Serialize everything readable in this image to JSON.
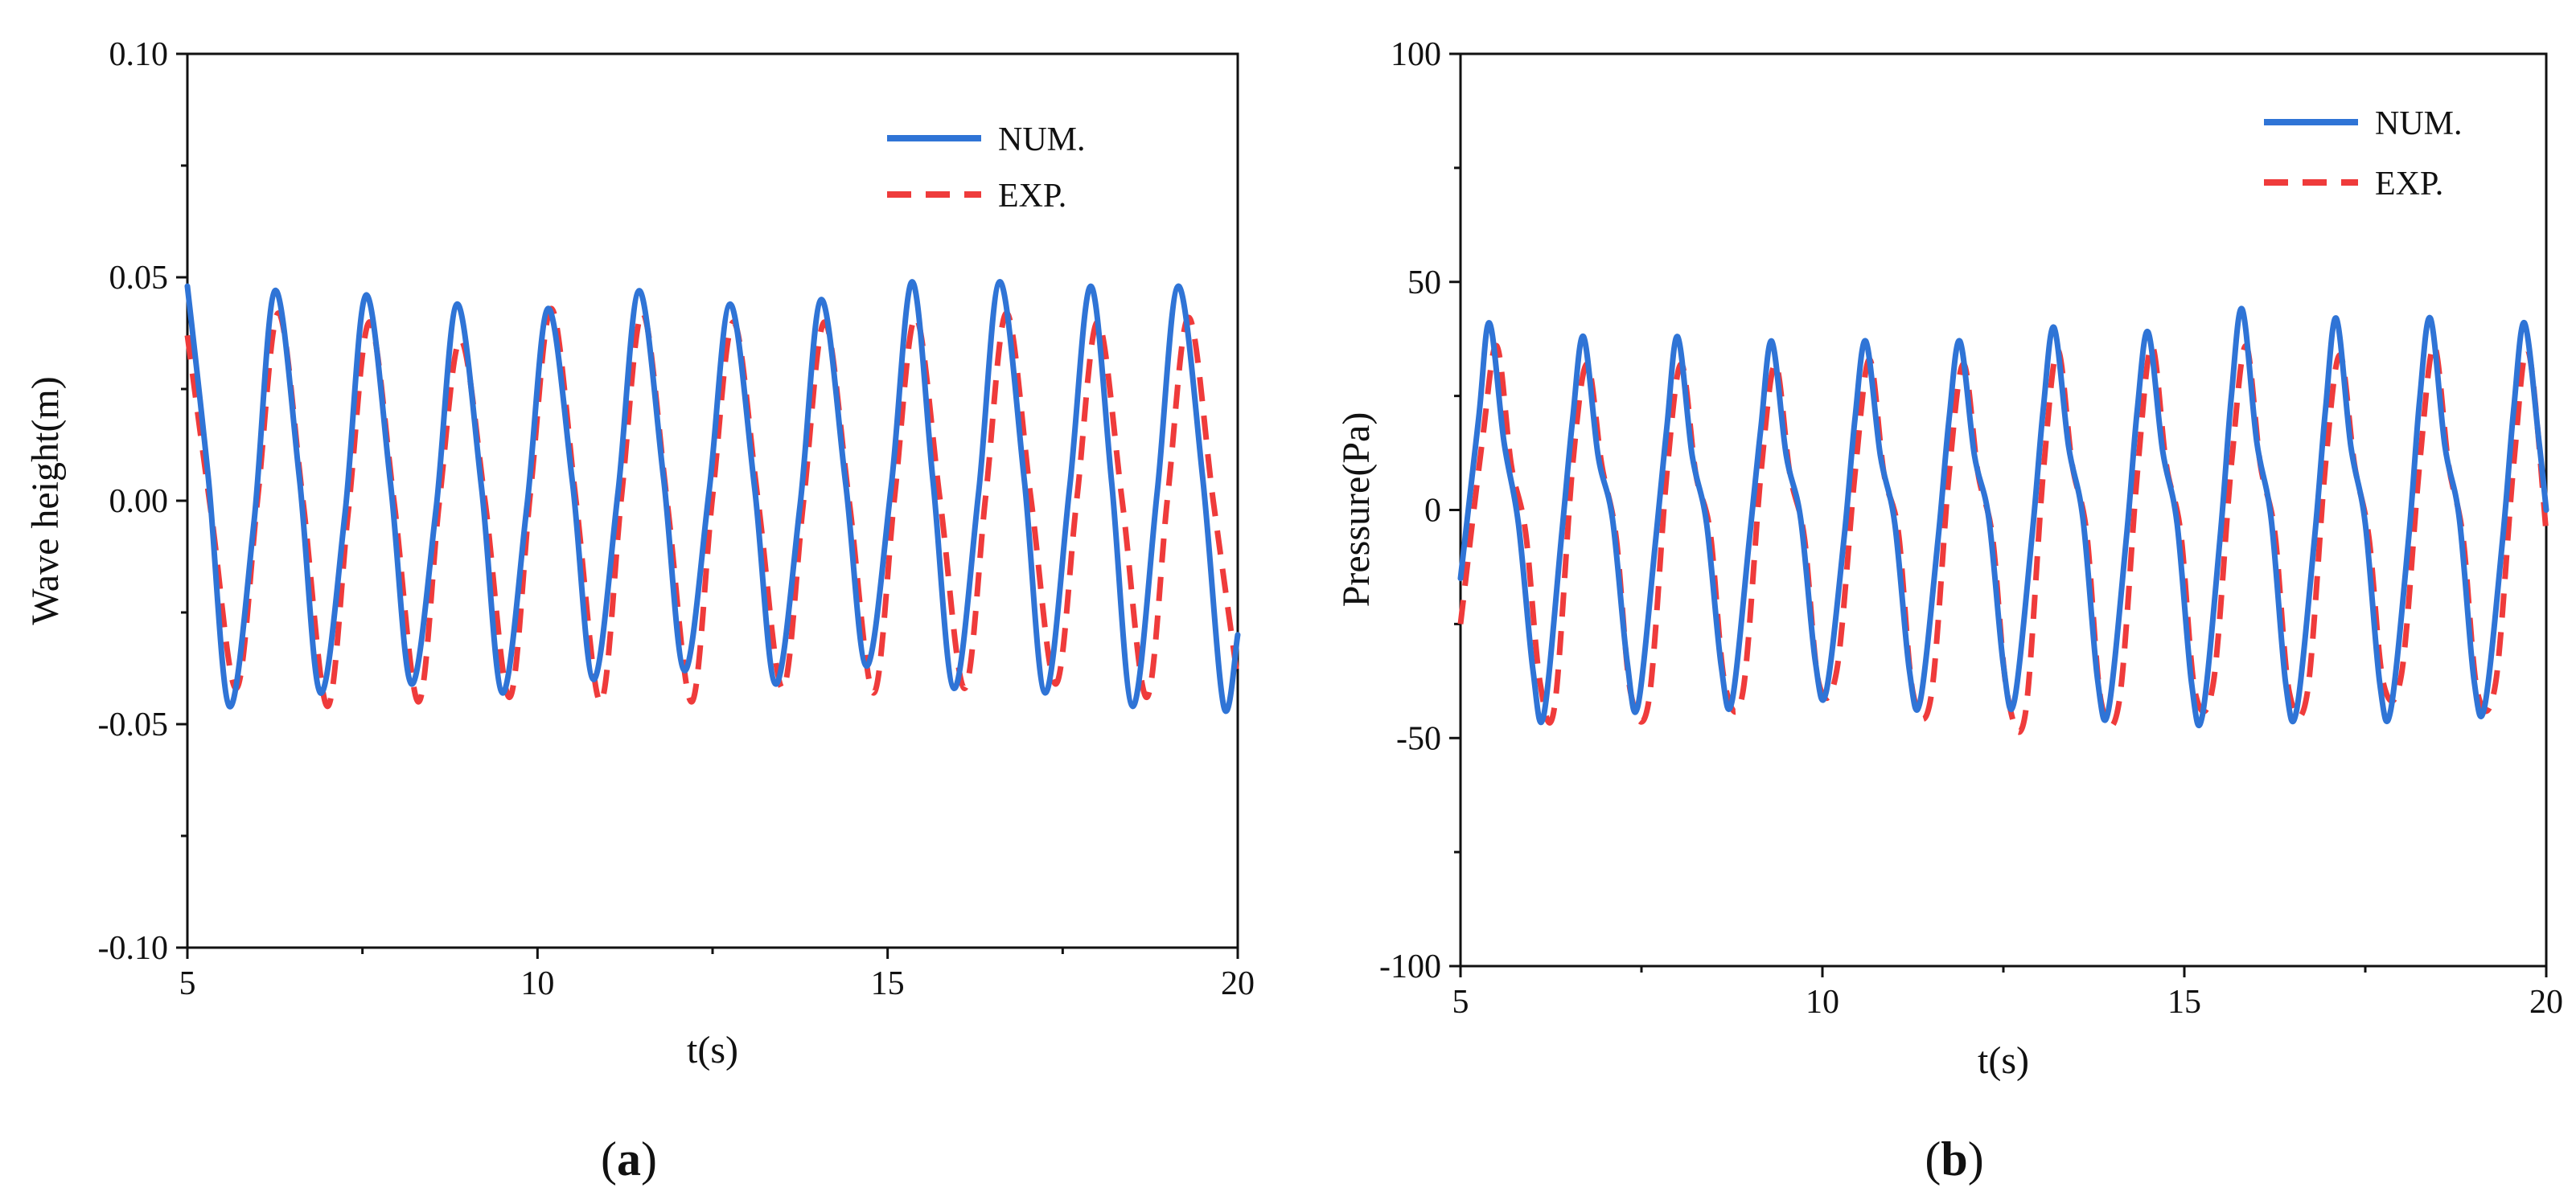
{
  "chart_data": [
    {
      "type": "line",
      "panel_label": "a",
      "xlabel": "t(s)",
      "ylabel": "Wave height(m)",
      "xlim": [
        5,
        20
      ],
      "ylim": [
        -0.1,
        0.1
      ],
      "xticks": [
        5,
        10,
        15,
        20
      ],
      "xtick_labels": [
        "5",
        "10",
        "15",
        "20"
      ],
      "yticks": [
        -0.1,
        -0.05,
        0.0,
        0.05,
        0.1
      ],
      "ytick_labels": [
        "-0.10",
        "-0.05",
        "0.00",
        "0.05",
        "0.10"
      ],
      "grid": false,
      "legend_position": "top-right",
      "series": [
        {
          "name": "NUM.",
          "color": "#2f74d6",
          "style": "solid",
          "x": [
            5.0,
            5.3,
            5.6,
            5.95,
            6.25,
            6.6,
            6.9,
            7.25,
            7.55,
            7.9,
            8.2,
            8.55,
            8.85,
            9.2,
            9.5,
            9.85,
            10.15,
            10.5,
            10.8,
            11.15,
            11.45,
            11.8,
            12.1,
            12.45,
            12.75,
            13.1,
            13.4,
            13.75,
            14.05,
            14.4,
            14.7,
            15.05,
            15.35,
            15.65,
            15.95,
            16.3,
            16.6,
            16.95,
            17.25,
            17.6,
            17.9,
            18.2,
            18.5,
            18.85,
            19.15,
            19.5,
            19.8,
            20.0
          ],
          "y": [
            0.048,
            0.005,
            -0.046,
            -0.005,
            0.047,
            0.005,
            -0.043,
            -0.003,
            0.046,
            0.004,
            -0.041,
            -0.002,
            0.044,
            0.003,
            -0.043,
            -0.001,
            0.043,
            0.004,
            -0.04,
            0.002,
            0.047,
            0.005,
            -0.038,
            0.002,
            0.044,
            0.003,
            -0.041,
            -0.001,
            0.045,
            0.004,
            -0.037,
            0.003,
            0.049,
            0.004,
            -0.042,
            0.002,
            0.049,
            0.005,
            -0.043,
            0.003,
            0.048,
            0.004,
            -0.046,
            0.002,
            0.048,
            0.005,
            -0.046,
            -0.03
          ]
        },
        {
          "name": "EXP.",
          "color": "#ef3b3b",
          "style": "dashed",
          "x": [
            5.0,
            5.35,
            5.7,
            6.0,
            6.3,
            6.65,
            7.0,
            7.3,
            7.6,
            7.95,
            8.3,
            8.6,
            8.9,
            9.25,
            9.6,
            9.9,
            10.2,
            10.55,
            10.9,
            11.2,
            11.5,
            11.85,
            12.2,
            12.5,
            12.8,
            13.15,
            13.5,
            13.8,
            14.1,
            14.45,
            14.8,
            15.1,
            15.4,
            15.75,
            16.1,
            16.4,
            16.7,
            17.05,
            17.4,
            17.7,
            18.0,
            18.35,
            18.7,
            19.0,
            19.3,
            19.65,
            20.0
          ],
          "y": [
            0.037,
            -0.004,
            -0.042,
            0.0,
            0.042,
            0.0,
            -0.046,
            -0.002,
            0.04,
            0.0,
            -0.045,
            0.0,
            0.036,
            0.0,
            -0.044,
            0.002,
            0.043,
            0.0,
            -0.045,
            0.001,
            0.042,
            0.0,
            -0.045,
            0.001,
            0.04,
            0.0,
            -0.042,
            0.0,
            0.04,
            0.0,
            -0.043,
            0.001,
            0.041,
            0.0,
            -0.042,
            0.001,
            0.042,
            0.0,
            -0.041,
            0.0,
            0.04,
            0.0,
            -0.044,
            0.001,
            0.041,
            0.0,
            -0.04
          ]
        }
      ]
    },
    {
      "type": "line",
      "panel_label": "b",
      "xlabel": "t(s)",
      "ylabel": "Pressure(Pa)",
      "xlim": [
        5,
        20
      ],
      "ylim": [
        -100,
        100
      ],
      "xticks": [
        5,
        10,
        15,
        20
      ],
      "xtick_labels": [
        "5",
        "10",
        "15",
        "20"
      ],
      "yticks": [
        -100,
        -50,
        0,
        50,
        100
      ],
      "ytick_labels": [
        "-100",
        "-50",
        "0",
        "50",
        "100"
      ],
      "grid": false,
      "legend_position": "top-right",
      "series": [
        {
          "name": "NUM.",
          "color": "#2f74d6",
          "style": "solid",
          "x": [
            5.0,
            5.25,
            5.4,
            5.6,
            5.8,
            6.0,
            6.15,
            6.4,
            6.55,
            6.7,
            6.9,
            7.1,
            7.3,
            7.45,
            7.7,
            7.85,
            8.0,
            8.2,
            8.4,
            8.6,
            8.75,
            9.0,
            9.15,
            9.3,
            9.5,
            9.7,
            9.9,
            10.05,
            10.3,
            10.45,
            10.6,
            10.8,
            11.0,
            11.2,
            11.35,
            11.6,
            11.75,
            11.9,
            12.1,
            12.3,
            12.5,
            12.65,
            12.9,
            13.05,
            13.2,
            13.4,
            13.6,
            13.8,
            13.95,
            14.2,
            14.35,
            14.5,
            14.7,
            14.9,
            15.1,
            15.25,
            15.5,
            15.65,
            15.8,
            16.0,
            16.2,
            16.4,
            16.55,
            16.8,
            16.95,
            17.1,
            17.3,
            17.5,
            17.7,
            17.85,
            18.1,
            18.25,
            18.4,
            18.6,
            18.8,
            19.0,
            19.15,
            19.4,
            19.55,
            19.7,
            19.9,
            20.0
          ],
          "y": [
            -15,
            20,
            41,
            15,
            -3,
            -35,
            -45,
            -5,
            20,
            38,
            12,
            -2,
            -33,
            -43,
            -6,
            18,
            38,
            12,
            -3,
            -34,
            -42,
            -5,
            18,
            37,
            12,
            -2,
            -33,
            -40,
            -6,
            20,
            37,
            12,
            -3,
            -35,
            -42,
            -6,
            20,
            37,
            12,
            -2,
            -34,
            -42,
            -5,
            22,
            40,
            14,
            -2,
            -37,
            -44,
            -6,
            22,
            39,
            13,
            -3,
            -38,
            -45,
            -5,
            25,
            44,
            15,
            -2,
            -38,
            -44,
            -6,
            22,
            42,
            14,
            -3,
            -38,
            -44,
            -6,
            24,
            42,
            14,
            -2,
            -37,
            -43,
            -6,
            22,
            41,
            15,
            0
          ]
        },
        {
          "name": "EXP.",
          "color": "#ef3b3b",
          "style": "dashed",
          "x": [
            5.0,
            5.3,
            5.5,
            5.7,
            5.9,
            6.1,
            6.3,
            6.55,
            6.75,
            6.95,
            7.15,
            7.35,
            7.6,
            7.85,
            8.05,
            8.25,
            8.45,
            8.65,
            8.9,
            9.15,
            9.35,
            9.55,
            9.75,
            9.95,
            10.2,
            10.45,
            10.65,
            10.85,
            11.05,
            11.25,
            11.5,
            11.75,
            11.95,
            12.15,
            12.35,
            12.55,
            12.8,
            13.05,
            13.25,
            13.45,
            13.65,
            13.85,
            14.1,
            14.35,
            14.55,
            14.75,
            14.95,
            15.15,
            15.4,
            15.65,
            15.85,
            16.05,
            16.25,
            16.45,
            16.7,
            16.95,
            17.15,
            17.35,
            17.55,
            17.75,
            18.0,
            18.25,
            18.45,
            18.65,
            18.85,
            19.05,
            19.3,
            19.55,
            19.75,
            20.0
          ],
          "y": [
            -25,
            15,
            36,
            10,
            -5,
            -38,
            -43,
            10,
            32,
            10,
            -6,
            -40,
            -42,
            8,
            32,
            8,
            -5,
            -38,
            -40,
            8,
            32,
            8,
            -6,
            -38,
            -35,
            8,
            33,
            8,
            -5,
            -40,
            -41,
            8,
            32,
            8,
            -6,
            -40,
            -45,
            8,
            35,
            10,
            -5,
            -42,
            -42,
            8,
            36,
            10,
            -5,
            -40,
            -38,
            10,
            36,
            10,
            -5,
            -40,
            -40,
            10,
            34,
            10,
            -6,
            -38,
            -36,
            10,
            36,
            10,
            -6,
            -40,
            -38,
            10,
            35,
            -5
          ]
        }
      ]
    }
  ]
}
